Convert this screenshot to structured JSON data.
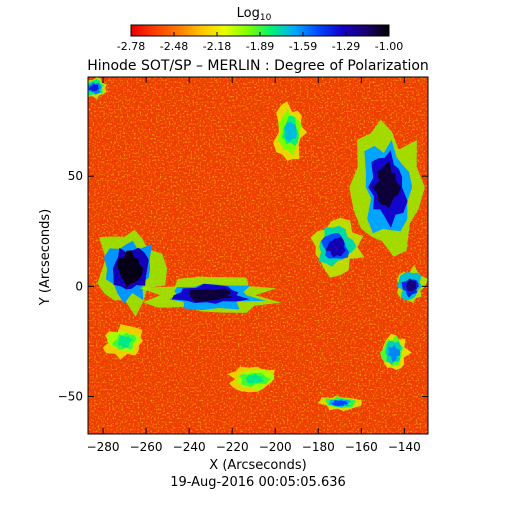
{
  "chart_data": {
    "type": "heatmap",
    "title": "Hinode SOT/SP – MERLIN : Degree of Polarization",
    "xlabel": "X (Arcseconds)",
    "ylabel": "Y (Arcseconds)",
    "footer": "19-Aug-2016 00:05:05.636",
    "xlim": [
      -287,
      -129
    ],
    "ylim": [
      -67,
      95
    ],
    "xticks": [
      -280,
      -260,
      -240,
      -220,
      -200,
      -180,
      -160,
      -140
    ],
    "yticks": [
      -50,
      0,
      50
    ],
    "grid": false,
    "colorbar": {
      "title_base": "Log",
      "title_sub": "10",
      "orientation": "horizontal",
      "placement": "top",
      "range": [
        -2.78,
        -1.0
      ],
      "ticks": [
        "-2.78",
        "-2.48",
        "-2.18",
        "-1.89",
        "-1.59",
        "-1.29",
        "-1.00"
      ],
      "colormap": [
        "#e80000",
        "#ff3c00",
        "#ff7a00",
        "#ffc400",
        "#e8ff00",
        "#7dff00",
        "#00f07a",
        "#00a8ff",
        "#0046ff",
        "#1400c8",
        "#1a0070",
        "#000000"
      ]
    },
    "background_level_range": [
      -2.78,
      -2.3
    ],
    "regions": [
      {
        "name": "network cluster west",
        "x": -268,
        "y": 8,
        "peak": -1.05,
        "rx": 13,
        "ry": 16
      },
      {
        "name": "lane south-west",
        "x": -230,
        "y": -4,
        "peak": -1.1,
        "rx": 25,
        "ry": 7
      },
      {
        "name": "cluster north-east",
        "x": -148,
        "y": 45,
        "peak": -1.1,
        "rx": 13,
        "ry": 24
      },
      {
        "name": "patch east",
        "x": -172,
        "y": 18,
        "peak": -1.3,
        "rx": 10,
        "ry": 10
      },
      {
        "name": "fragment east edge",
        "x": -137,
        "y": 0,
        "peak": -1.2,
        "rx": 6,
        "ry": 7
      },
      {
        "name": "fragment north-west corner",
        "x": -284,
        "y": 90,
        "peak": -1.4,
        "rx": 5,
        "ry": 4
      },
      {
        "name": "fragment north center",
        "x": -193,
        "y": 70,
        "peak": -1.7,
        "rx": 6,
        "ry": 10
      },
      {
        "name": "fragment south-east",
        "x": -145,
        "y": -30,
        "peak": -1.6,
        "rx": 6,
        "ry": 8
      },
      {
        "name": "fragment south",
        "x": -170,
        "y": -53,
        "peak": -1.5,
        "rx": 8,
        "ry": 3
      },
      {
        "name": "fragment south center",
        "x": -210,
        "y": -42,
        "peak": -1.8,
        "rx": 10,
        "ry": 5
      },
      {
        "name": "fragment west low",
        "x": -270,
        "y": -25,
        "peak": -1.8,
        "rx": 8,
        "ry": 6
      }
    ]
  }
}
